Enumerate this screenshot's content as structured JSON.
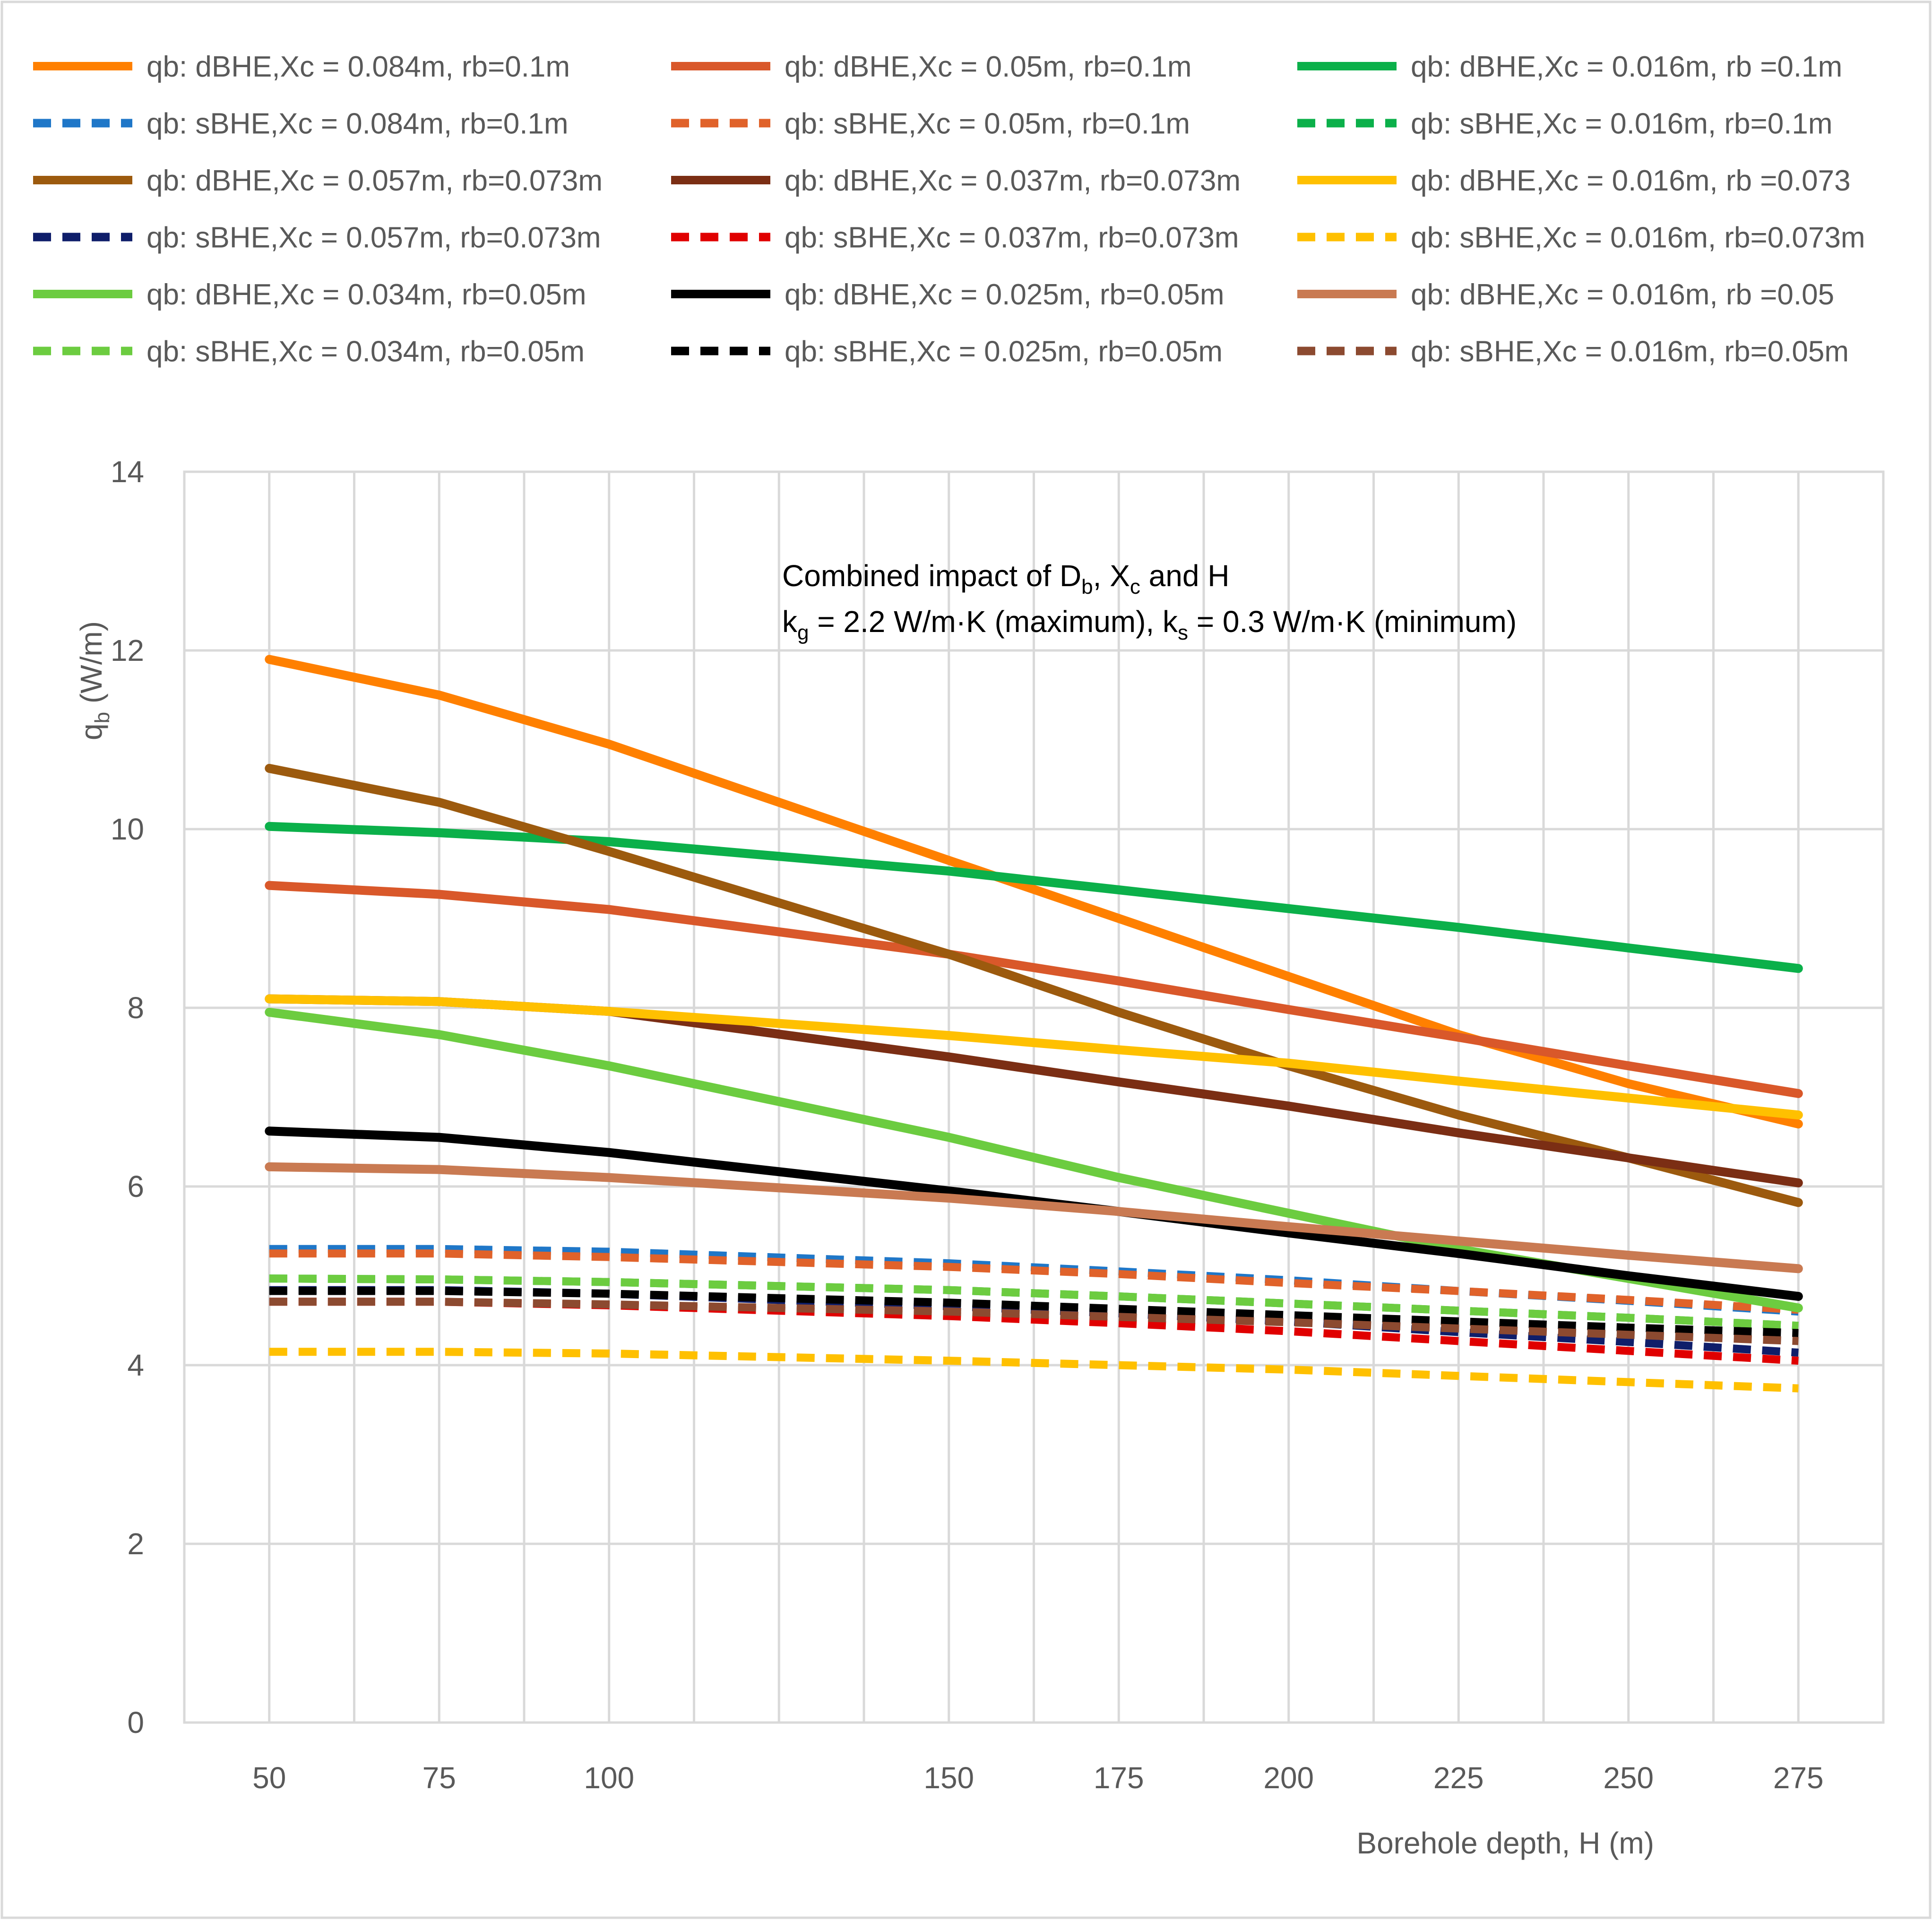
{
  "chart_data": {
    "type": "line",
    "xlabel": "Borehole depth, H (m)",
    "ylabel": {
      "base": "q",
      "sub": "b",
      "tail": " (W/m)"
    },
    "annotation": {
      "line1": {
        "pre": "Combined impact of D",
        "sub1": "b",
        "mid": ", X",
        "sub2": "c",
        "post": "  and H"
      },
      "line2": {
        "pre": "k",
        "sub1": "g",
        "mid": " = 2.2 W/m·K (maximum), k",
        "sub2": "s",
        "post": " = 0.3 W/m·K (minimum)"
      }
    },
    "x_ticks": [
      50,
      75,
      100,
      150,
      175,
      200,
      225,
      250,
      275
    ],
    "x_tick_labels": [
      "50",
      "75",
      "100",
      "150",
      "175",
      "200",
      "225",
      "250",
      "275"
    ],
    "xlim": [
      37.5,
      287.5
    ],
    "ylim": [
      0,
      14
    ],
    "y_ticks": [
      0,
      2,
      4,
      6,
      8,
      10,
      12,
      14
    ],
    "y_tick_labels": [
      "0",
      "2",
      "4",
      "6",
      "8",
      "10",
      "12",
      "14"
    ],
    "grid": true,
    "legend_position": "top",
    "x": [
      50,
      75,
      100,
      150,
      175,
      200,
      225,
      250,
      275
    ],
    "series": [
      {
        "name": "qb: dBHE,Xc = 0.084m, rb=0.1m",
        "color": "#FF8000",
        "dash": false,
        "values": [
          11.9,
          11.5,
          10.95,
          9.65,
          9.0,
          8.35,
          7.7,
          7.15,
          6.7
        ]
      },
      {
        "name": "qb: dBHE,Xc = 0.05m, rb=0.1m",
        "color": "#D9582A",
        "dash": false,
        "values": [
          9.37,
          9.27,
          9.1,
          8.6,
          8.3,
          7.98,
          7.67,
          7.35,
          7.04
        ]
      },
      {
        "name": "qb: dBHE,Xc = 0.016m, rb =0.1m",
        "color": "#0BB04A",
        "dash": false,
        "values": [
          10.03,
          9.96,
          9.86,
          9.53,
          9.32,
          9.11,
          8.9,
          8.67,
          8.44
        ]
      },
      {
        "name": "qb: sBHE,Xc = 0.084m, rb=0.1m",
        "color": "#1F77C8",
        "dash": true,
        "values": [
          5.3,
          5.3,
          5.27,
          5.14,
          5.05,
          4.95,
          4.83,
          4.72,
          4.6
        ]
      },
      {
        "name": "qb: sBHE,Xc = 0.05m, rb=0.1m",
        "color": "#E0622A",
        "dash": true,
        "values": [
          5.25,
          5.25,
          5.21,
          5.1,
          5.02,
          4.92,
          4.83,
          4.73,
          4.62
        ]
      },
      {
        "name": "qb: sBHE,Xc = 0.016m, rb=0.1m",
        "color": "#0BB04A",
        "dash": true,
        "values": [
          4.97,
          4.96,
          4.93,
          4.84,
          4.77,
          4.69,
          4.61,
          4.53,
          4.44
        ]
      },
      {
        "name": "qb: dBHE,Xc = 0.057m, rb=0.073m",
        "color": "#9C5A0E",
        "dash": false,
        "values": [
          10.68,
          10.3,
          9.75,
          8.6,
          7.95,
          7.35,
          6.8,
          6.32,
          5.82
        ]
      },
      {
        "name": "qb: dBHE,Xc = 0.037m, rb=0.073m",
        "color": "#7B2E14",
        "dash": false,
        "values": [
          8.1,
          8.07,
          7.96,
          7.45,
          7.17,
          6.9,
          6.6,
          6.32,
          6.04
        ]
      },
      {
        "name": "qb: dBHE,Xc = 0.016m, rb =0.073",
        "color": "#FFC000",
        "dash": false,
        "values": [
          8.1,
          8.07,
          7.96,
          7.69,
          7.53,
          7.38,
          7.18,
          6.99,
          6.8
        ]
      },
      {
        "name": "qb: sBHE,Xc = 0.057m, rb=0.073m",
        "color": "#0F1E6A",
        "dash": true,
        "values": [
          4.84,
          4.84,
          4.8,
          4.66,
          4.58,
          4.49,
          4.37,
          4.26,
          4.14
        ]
      },
      {
        "name": "qb: sBHE,Xc = 0.037m, rb=0.073m",
        "color": "#E00000",
        "dash": true,
        "values": [
          4.71,
          4.71,
          4.67,
          4.55,
          4.47,
          4.38,
          4.27,
          4.16,
          4.05
        ]
      },
      {
        "name": "qb: sBHE,Xc = 0.016m, rb=0.073m",
        "color": "#FFC000",
        "dash": true,
        "values": [
          4.15,
          4.15,
          4.13,
          4.05,
          4.0,
          3.95,
          3.88,
          3.81,
          3.74
        ]
      },
      {
        "name": "qb: dBHE,Xc = 0.034m, rb=0.05m",
        "color": "#6CCC40",
        "dash": false,
        "values": [
          7.95,
          7.7,
          7.35,
          6.55,
          6.1,
          5.7,
          5.3,
          4.97,
          4.64
        ]
      },
      {
        "name": "qb: dBHE,Xc = 0.025m, rb=0.05m",
        "color": "#000000",
        "dash": false,
        "values": [
          6.62,
          6.55,
          6.38,
          5.95,
          5.72,
          5.48,
          5.25,
          5.0,
          4.77
        ]
      },
      {
        "name": "qb: dBHE,Xc = 0.016m, rb =0.05",
        "color": "#C97A52",
        "dash": false,
        "values": [
          6.22,
          6.19,
          6.1,
          5.87,
          5.72,
          5.55,
          5.39,
          5.23,
          5.08
        ]
      },
      {
        "name": "qb: sBHE,Xc = 0.034m, rb=0.05m",
        "color": "#6CCC40",
        "dash": true,
        "values": [
          4.97,
          4.96,
          4.93,
          4.84,
          4.77,
          4.69,
          4.61,
          4.53,
          4.44
        ]
      },
      {
        "name": "qb: sBHE,Xc = 0.025m, rb=0.05m",
        "color": "#000000",
        "dash": true,
        "values": [
          4.83,
          4.83,
          4.8,
          4.7,
          4.63,
          4.56,
          4.49,
          4.42,
          4.36
        ]
      },
      {
        "name": "qb: sBHE,Xc = 0.016m, rb=0.05m",
        "color": "#8C4A30",
        "dash": true,
        "values": [
          4.71,
          4.71,
          4.68,
          4.6,
          4.54,
          4.48,
          4.41,
          4.34,
          4.27
        ]
      }
    ]
  }
}
